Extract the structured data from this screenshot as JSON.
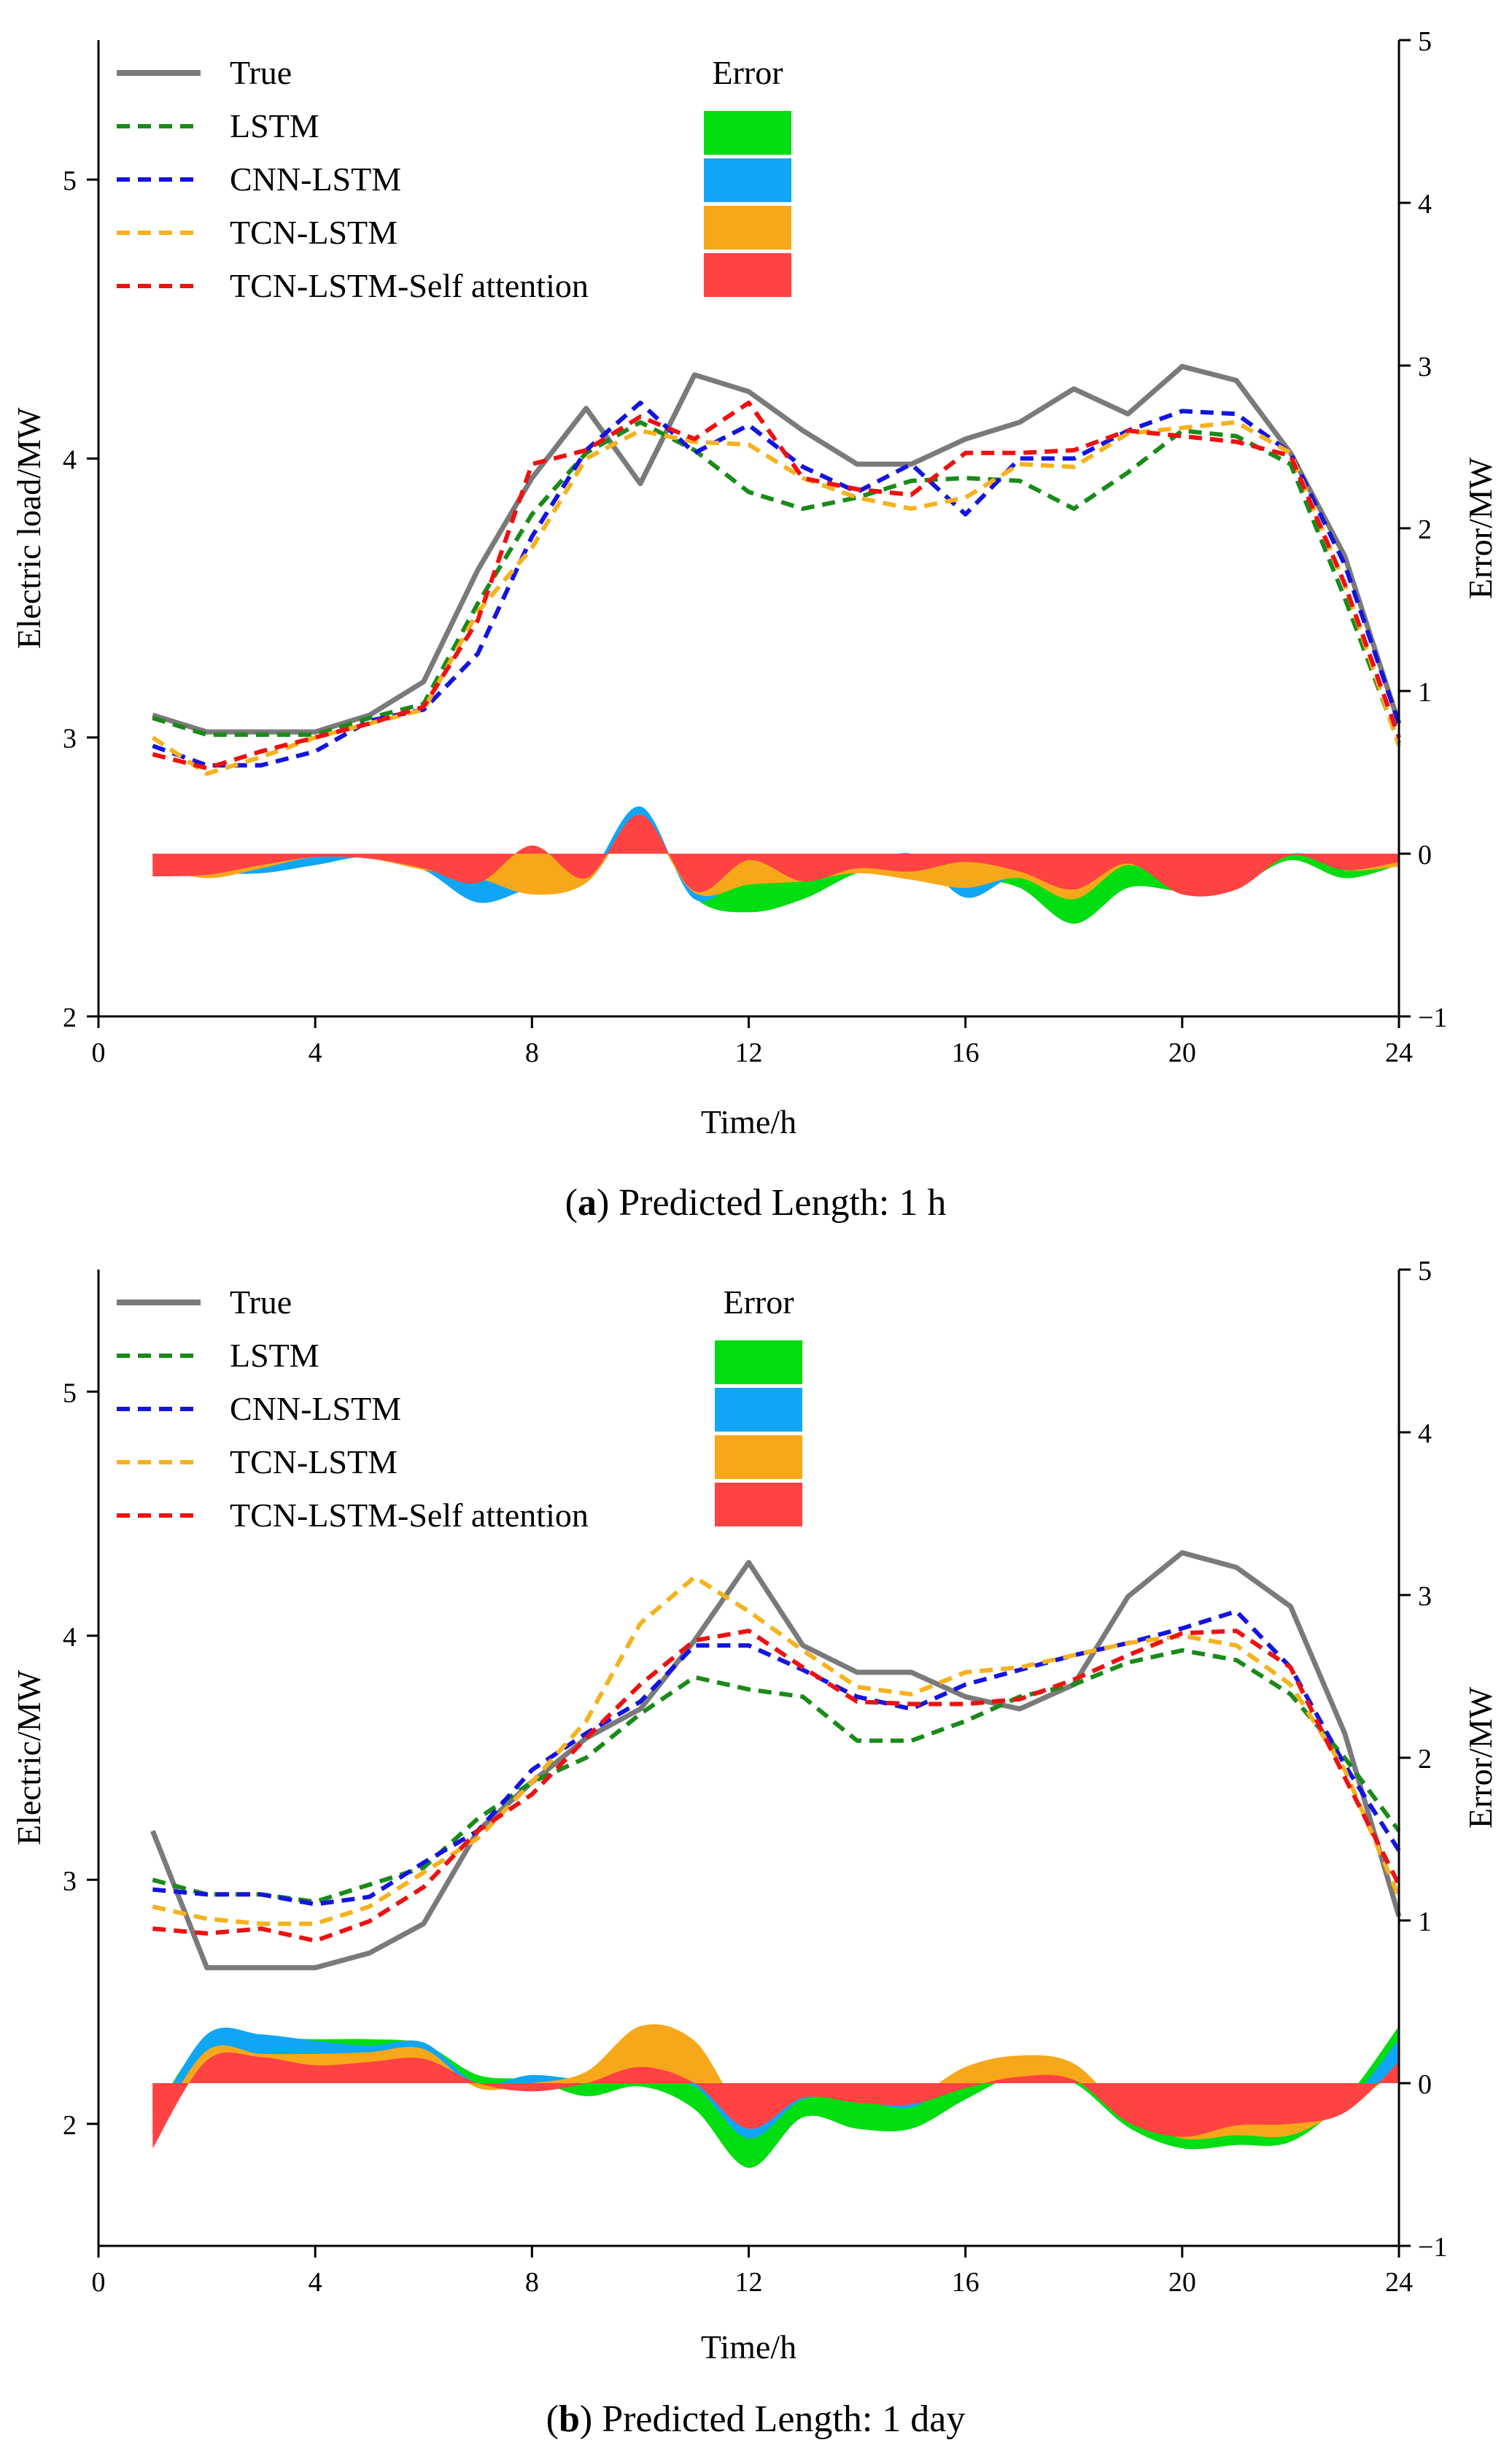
{
  "colors": {
    "true": "#7a7a7a",
    "lstm": "#1a8a1a",
    "cnn_lstm": "#1414e0",
    "tcn_lstm": "#f5b21e",
    "tcn_lstm_sa": "#ee1111",
    "err_lstm": "#00dd11",
    "err_cnn_lstm": "#11a6f5",
    "err_tcn_lstm": "#f7a81a",
    "err_tcn_lstm_sa": "#ff4242"
  },
  "chart_data": [
    {
      "type": "line",
      "panel_letter": "a",
      "caption": "Predicted Length: 1 h",
      "xlabel": "Time/h",
      "ylabel": "Electric load/MW",
      "y2label": "Error/MW",
      "xlim": [
        0,
        24
      ],
      "ylim": [
        2,
        5.5
      ],
      "y2lim": [
        -1,
        5
      ],
      "xticks": [
        "0",
        "4",
        "8",
        "12",
        "16",
        "20",
        "24"
      ],
      "yticks": [
        "2",
        "3",
        "4",
        "5"
      ],
      "y2ticks": [
        "−1",
        "0",
        "1",
        "2",
        "3",
        "4",
        "5"
      ],
      "legend_title": "Error",
      "x": [
        1,
        2,
        3,
        4,
        5,
        6,
        7,
        8,
        9,
        10,
        11,
        12,
        13,
        14,
        15,
        16,
        17,
        18,
        19,
        20,
        21,
        22,
        23,
        24
      ],
      "series": [
        {
          "name": "True",
          "axis": "left",
          "style": "solid",
          "color_key": "true",
          "values": [
            3.08,
            3.02,
            3.02,
            3.02,
            3.08,
            3.2,
            3.6,
            3.93,
            4.18,
            3.91,
            4.3,
            4.24,
            4.1,
            3.98,
            3.98,
            4.07,
            4.13,
            4.25,
            4.16,
            4.33,
            4.28,
            4.02,
            3.65,
            3.05
          ]
        },
        {
          "name": "LSTM",
          "axis": "left",
          "style": "dashed",
          "color_key": "lstm",
          "values": [
            3.07,
            3.01,
            3.01,
            3.01,
            3.07,
            3.12,
            3.48,
            3.8,
            4.02,
            4.13,
            4.03,
            3.88,
            3.82,
            3.86,
            3.92,
            3.93,
            3.92,
            3.82,
            3.95,
            4.1,
            4.08,
            3.98,
            3.5,
            2.98
          ]
        },
        {
          "name": "CNN-LSTM",
          "axis": "left",
          "style": "dashed",
          "color_key": "cnn_lstm",
          "values": [
            2.97,
            2.9,
            2.9,
            2.95,
            3.06,
            3.1,
            3.3,
            3.72,
            4.03,
            4.2,
            4.02,
            4.12,
            3.97,
            3.88,
            3.98,
            3.8,
            4.0,
            4.0,
            4.1,
            4.17,
            4.16,
            4.02,
            3.62,
            3.05
          ]
        },
        {
          "name": "TCN-LSTM",
          "axis": "left",
          "style": "dashed",
          "color_key": "tcn_lstm",
          "values": [
            3.0,
            2.87,
            2.93,
            3.0,
            3.05,
            3.1,
            3.45,
            3.68,
            4.0,
            4.1,
            4.06,
            4.05,
            3.93,
            3.86,
            3.82,
            3.86,
            3.98,
            3.97,
            4.09,
            4.11,
            4.13,
            4.02,
            3.55,
            2.97
          ]
        },
        {
          "name": "TCN-LSTM-Self attention",
          "axis": "left",
          "style": "dashed",
          "color_key": "tcn_lstm_sa",
          "values": [
            2.94,
            2.89,
            2.95,
            3.0,
            3.05,
            3.11,
            3.42,
            3.98,
            4.03,
            4.15,
            4.07,
            4.2,
            3.93,
            3.89,
            3.87,
            4.02,
            4.02,
            4.03,
            4.1,
            4.08,
            4.06,
            4.01,
            3.55,
            3.0
          ]
        }
      ],
      "error_bands": [
        {
          "name": "LSTM",
          "axis": "right",
          "color_key": "err_lstm",
          "values": [
            -0.01,
            -0.01,
            -0.01,
            -0.01,
            -0.01,
            -0.08,
            -0.12,
            -0.13,
            -0.16,
            0.22,
            -0.27,
            -0.36,
            -0.28,
            -0.12,
            -0.06,
            -0.14,
            -0.21,
            -0.43,
            -0.21,
            -0.23,
            -0.2,
            -0.04,
            -0.15,
            -0.07
          ]
        },
        {
          "name": "CNN-LSTM",
          "axis": "right",
          "color_key": "err_cnn_lstm",
          "values": [
            -0.11,
            -0.12,
            -0.12,
            -0.07,
            -0.02,
            -0.1,
            -0.3,
            -0.21,
            -0.15,
            0.29,
            -0.28,
            -0.12,
            -0.13,
            -0.1,
            0.0,
            -0.27,
            -0.13,
            -0.25,
            -0.06,
            -0.16,
            -0.12,
            0.0,
            -0.03,
            0.0
          ]
        },
        {
          "name": "TCN-LSTM",
          "axis": "right",
          "color_key": "err_tcn_lstm",
          "values": [
            -0.08,
            -0.15,
            -0.09,
            -0.02,
            -0.03,
            -0.1,
            -0.15,
            -0.25,
            -0.18,
            0.19,
            -0.24,
            -0.19,
            -0.17,
            -0.12,
            -0.16,
            -0.21,
            -0.15,
            -0.28,
            -0.07,
            -0.22,
            -0.15,
            0.0,
            -0.1,
            -0.08
          ]
        },
        {
          "name": "TCN-LSTM-Self attention",
          "axis": "right",
          "color_key": "err_tcn_lstm_sa",
          "values": [
            -0.14,
            -0.13,
            -0.07,
            -0.02,
            -0.03,
            -0.09,
            -0.18,
            0.05,
            -0.15,
            0.24,
            -0.23,
            -0.04,
            -0.17,
            -0.09,
            -0.11,
            -0.05,
            -0.11,
            -0.22,
            -0.06,
            -0.25,
            -0.22,
            -0.01,
            -0.1,
            -0.05
          ]
        }
      ]
    },
    {
      "type": "line",
      "panel_letter": "b",
      "caption": "Predicted Length: 1 day",
      "xlabel": "Time/h",
      "ylabel": "Electric/MW",
      "y2label": "Error/MW",
      "xlim": [
        0,
        24
      ],
      "ylim": [
        1.5,
        5.5
      ],
      "y2lim": [
        -1,
        5
      ],
      "xticks": [
        "0",
        "4",
        "8",
        "12",
        "16",
        "20",
        "24"
      ],
      "yticks": [
        "2",
        "3",
        "4",
        "5"
      ],
      "y2ticks": [
        "−1",
        "0",
        "1",
        "2",
        "3",
        "4",
        "5"
      ],
      "legend_title": "Error",
      "x": [
        1,
        2,
        3,
        4,
        5,
        6,
        7,
        8,
        9,
        10,
        11,
        12,
        13,
        14,
        15,
        16,
        17,
        18,
        19,
        20,
        21,
        22,
        23,
        24
      ],
      "series": [
        {
          "name": "True",
          "axis": "left",
          "style": "solid",
          "color_key": "true",
          "values": [
            3.2,
            2.64,
            2.64,
            2.64,
            2.7,
            2.82,
            3.2,
            3.4,
            3.58,
            3.7,
            3.98,
            4.3,
            3.96,
            3.85,
            3.85,
            3.75,
            3.7,
            3.8,
            4.16,
            4.34,
            4.28,
            4.12,
            3.6,
            2.85
          ]
        },
        {
          "name": "LSTM",
          "axis": "left",
          "style": "dashed",
          "color_key": "lstm",
          "values": [
            3.0,
            2.94,
            2.94,
            2.91,
            2.98,
            3.05,
            3.25,
            3.4,
            3.5,
            3.68,
            3.83,
            3.78,
            3.75,
            3.57,
            3.57,
            3.65,
            3.75,
            3.8,
            3.89,
            3.94,
            3.9,
            3.76,
            3.5,
            3.2
          ]
        },
        {
          "name": "CNN-LSTM",
          "axis": "left",
          "style": "dashed",
          "color_key": "cnn_lstm",
          "values": [
            2.96,
            2.94,
            2.94,
            2.9,
            2.93,
            3.07,
            3.2,
            3.45,
            3.6,
            3.73,
            3.96,
            3.96,
            3.86,
            3.75,
            3.7,
            3.8,
            3.86,
            3.92,
            3.97,
            4.03,
            4.1,
            3.87,
            3.47,
            3.12
          ]
        },
        {
          "name": "TCN-LSTM",
          "axis": "left",
          "style": "dashed",
          "color_key": "tcn_lstm",
          "values": [
            2.89,
            2.84,
            2.82,
            2.82,
            2.89,
            3.03,
            3.17,
            3.4,
            3.65,
            4.05,
            4.24,
            4.1,
            3.94,
            3.79,
            3.76,
            3.85,
            3.87,
            3.92,
            3.97,
            4.0,
            3.96,
            3.8,
            3.45,
            2.93
          ]
        },
        {
          "name": "TCN-LSTM-Self attention",
          "axis": "left",
          "style": "dashed",
          "color_key": "tcn_lstm_sa",
          "values": [
            2.8,
            2.78,
            2.8,
            2.75,
            2.83,
            2.97,
            3.2,
            3.35,
            3.58,
            3.8,
            3.98,
            4.02,
            3.87,
            3.73,
            3.72,
            3.72,
            3.74,
            3.82,
            3.92,
            4.01,
            4.02,
            3.87,
            3.42,
            2.98
          ]
        }
      ],
      "error_bands": [
        {
          "name": "LSTM",
          "axis": "right",
          "color_key": "err_lstm",
          "values": [
            -0.2,
            0.28,
            0.28,
            0.27,
            0.27,
            0.24,
            0.05,
            0.02,
            -0.08,
            -0.02,
            -0.16,
            -0.52,
            -0.21,
            -0.28,
            -0.28,
            -0.1,
            0.05,
            0.0,
            -0.27,
            -0.4,
            -0.38,
            -0.36,
            -0.1,
            0.35
          ]
        },
        {
          "name": "CNN-LSTM",
          "axis": "right",
          "color_key": "err_cnn_lstm",
          "values": [
            -0.24,
            0.3,
            0.3,
            0.26,
            0.23,
            0.25,
            0.0,
            0.05,
            0.02,
            0.03,
            -0.02,
            -0.34,
            -0.1,
            -0.1,
            -0.15,
            0.05,
            0.16,
            0.12,
            -0.19,
            -0.31,
            -0.18,
            -0.25,
            -0.13,
            0.27
          ]
        },
        {
          "name": "TCN-LSTM",
          "axis": "right",
          "color_key": "err_tcn_lstm",
          "values": [
            -0.31,
            0.2,
            0.18,
            0.18,
            0.19,
            0.21,
            -0.03,
            0.0,
            0.07,
            0.35,
            0.26,
            -0.2,
            -0.02,
            -0.06,
            -0.09,
            0.1,
            0.17,
            0.12,
            -0.19,
            -0.34,
            -0.32,
            -0.32,
            -0.15,
            0.08
          ]
        },
        {
          "name": "TCN-LSTM-Self attention",
          "axis": "right",
          "color_key": "err_tcn_lstm_sa",
          "values": [
            -0.4,
            0.14,
            0.16,
            0.11,
            0.13,
            0.15,
            0.0,
            -0.05,
            0.0,
            0.1,
            0.0,
            -0.28,
            -0.09,
            -0.12,
            -0.13,
            -0.03,
            0.04,
            0.02,
            -0.24,
            -0.33,
            -0.26,
            -0.25,
            -0.18,
            0.13
          ]
        }
      ]
    }
  ]
}
